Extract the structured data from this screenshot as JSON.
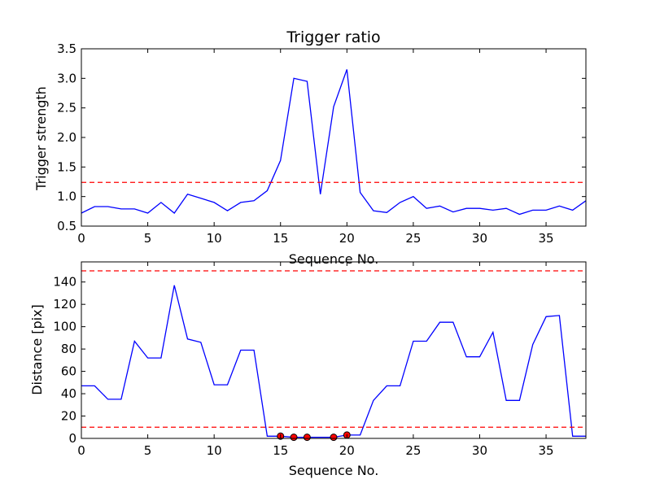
{
  "chart_data": [
    {
      "type": "line",
      "title": "Trigger ratio",
      "xlabel": "Sequence No.",
      "ylabel": "Trigger strength",
      "xlim": [
        0,
        38
      ],
      "ylim": [
        0.5,
        3.5
      ],
      "xticks": [
        0,
        5,
        10,
        15,
        20,
        25,
        30,
        35
      ],
      "yticks": [
        0.5,
        1.0,
        1.5,
        2.0,
        2.5,
        3.0,
        3.5
      ],
      "ytick_format": 1,
      "grid": false,
      "colors": {
        "line": "#0000ff",
        "threshold": "#ff0000"
      },
      "series": [
        {
          "x": [
            0,
            1,
            2,
            3,
            4,
            5,
            6,
            7,
            8,
            9,
            10,
            11,
            12,
            13,
            14,
            15,
            16,
            17,
            18,
            19,
            20,
            21,
            22,
            23,
            24,
            25,
            26,
            27,
            28,
            29,
            30,
            31,
            32,
            33,
            34,
            35,
            36,
            37,
            38
          ],
          "values": [
            0.72,
            0.83,
            0.83,
            0.79,
            0.79,
            0.72,
            0.9,
            0.72,
            1.04,
            0.97,
            0.9,
            0.76,
            0.9,
            0.93,
            1.1,
            1.61,
            3.0,
            2.95,
            1.04,
            2.52,
            3.15,
            1.07,
            0.76,
            0.73,
            0.9,
            1.0,
            0.8,
            0.84,
            0.74,
            0.8,
            0.8,
            0.77,
            0.8,
            0.7,
            0.77,
            0.77,
            0.84,
            0.77,
            0.93
          ]
        }
      ],
      "hlines": [
        1.24
      ],
      "markers": []
    },
    {
      "type": "line",
      "title": "",
      "xlabel": "Sequence No.",
      "ylabel": "Distance [pix]",
      "xlim": [
        0,
        38
      ],
      "ylim": [
        0,
        158
      ],
      "xticks": [
        0,
        5,
        10,
        15,
        20,
        25,
        30,
        35
      ],
      "yticks": [
        0,
        20,
        40,
        60,
        80,
        100,
        120,
        140
      ],
      "ytick_format": 0,
      "grid": false,
      "colors": {
        "line": "#0000ff",
        "threshold": "#ff0000",
        "marker": "#ff0000"
      },
      "series": [
        {
          "x": [
            0,
            1,
            2,
            3,
            4,
            5,
            6,
            7,
            8,
            9,
            10,
            11,
            12,
            13,
            14,
            15,
            16,
            17,
            18,
            19,
            20,
            21,
            22,
            23,
            24,
            25,
            26,
            27,
            28,
            29,
            30,
            31,
            32,
            33,
            34,
            35,
            36,
            37,
            38
          ],
          "values": [
            47,
            47,
            35,
            35,
            87,
            72,
            72,
            137,
            89,
            86,
            48,
            48,
            79,
            79,
            2,
            2,
            1,
            1,
            1,
            1,
            3,
            3,
            34,
            47,
            47,
            87,
            87,
            104,
            104,
            73,
            73,
            95,
            34,
            34,
            84,
            109,
            110,
            2,
            2
          ]
        }
      ],
      "hlines": [
        10,
        150
      ],
      "markers": [
        {
          "x": 15,
          "y": 2
        },
        {
          "x": 16,
          "y": 1
        },
        {
          "x": 17,
          "y": 1
        },
        {
          "x": 19,
          "y": 1
        },
        {
          "x": 20,
          "y": 3
        }
      ]
    }
  ]
}
